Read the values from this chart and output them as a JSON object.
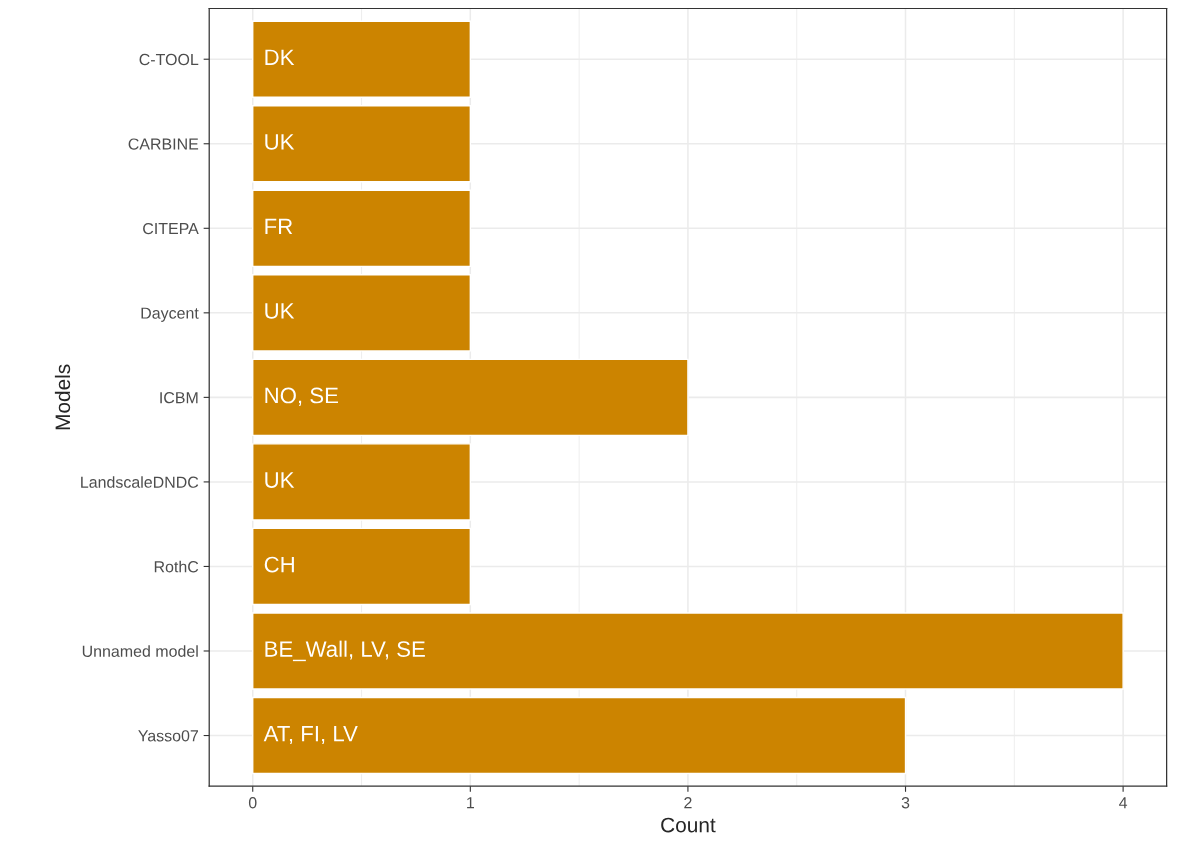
{
  "chart_data": {
    "type": "bar",
    "orientation": "horizontal",
    "xlabel": "Count",
    "ylabel": "Models",
    "categories": [
      "C-TOOL",
      "CARBINE",
      "CITEPA",
      "Daycent",
      "ICBM",
      "LandscaleDNDC",
      "RothC",
      "Unnamed model",
      "Yasso07"
    ],
    "values": [
      1,
      1,
      1,
      1,
      2,
      1,
      1,
      4,
      3
    ],
    "value_labels": [
      "DK",
      "UK",
      "FR",
      "UK",
      "NO, SE",
      "UK",
      "CH",
      "BE_Wall, LV, SE",
      "AT, FI, LV"
    ],
    "color": "#cc8400",
    "xlim": [
      -0.2,
      4.2
    ],
    "xticks": [
      0,
      1,
      2,
      3,
      4
    ],
    "grid": true
  }
}
